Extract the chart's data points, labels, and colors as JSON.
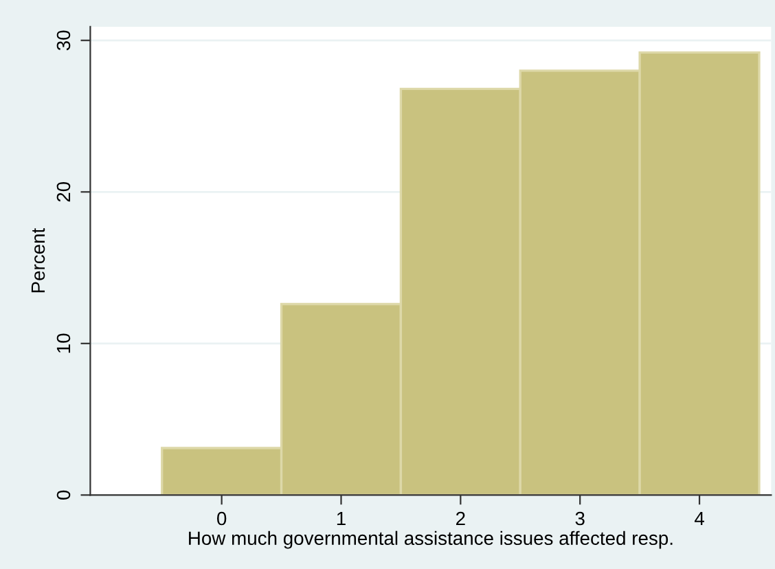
{
  "chart_data": {
    "type": "histogram",
    "xlabel": "How much governmental assistance issues affected resp.",
    "ylabel": "Percent",
    "bins": [
      -0.5,
      0.5,
      1.5,
      2.5,
      3.5,
      4.5
    ],
    "values": [
      3.1,
      12.6,
      26.8,
      28.0,
      29.2
    ],
    "color": "#c9c27f",
    "xlim": [
      -1.1,
      4.6
    ],
    "xticks": [
      0,
      1,
      2,
      3,
      4
    ],
    "ylim": [
      0,
      30.9
    ],
    "yticks": [
      0,
      10,
      20,
      30
    ],
    "grid": "y"
  }
}
